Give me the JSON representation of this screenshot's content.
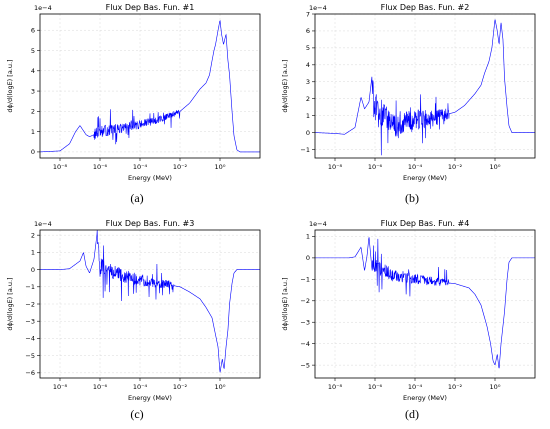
{
  "figure": {
    "panels": [
      {
        "caption": "(a)"
      },
      {
        "caption": "(b)"
      },
      {
        "caption": "(c)"
      },
      {
        "caption": "(d)"
      }
    ]
  },
  "chart_data": [
    {
      "type": "line",
      "title": "Flux Dep Bas. Fun. #1",
      "xlabel": "Energy (MeV)",
      "ylabel": "dϕ/d(logE) [a.u.]",
      "scale_label": "1e−4",
      "xscale": "log",
      "xlim": [
        1e-09,
        100
      ],
      "ylim": [
        -0.3,
        6.8
      ],
      "xticks": [
        1e-08,
        1e-06,
        0.0001,
        0.01,
        1
      ],
      "xtick_labels": [
        "10⁻⁸",
        "10⁻⁶",
        "10⁻⁴",
        "10⁻²",
        "10⁰"
      ],
      "yticks": [
        0,
        1,
        2,
        3,
        4,
        5,
        6
      ],
      "ytick_labels": [
        "0",
        "1",
        "2",
        "3",
        "4",
        "5",
        "6"
      ],
      "grid": true,
      "color": "#0000ff",
      "series": [
        {
          "x": [
            1e-09,
            1e-08,
            3e-08,
            6e-08,
            1e-07,
            2e-07,
            3e-07,
            5e-07,
            1e-06,
            1e-05,
            0.0001,
            0.001,
            0.01,
            0.03,
            0.1,
            0.2,
            0.3,
            0.4,
            0.5,
            0.6,
            0.8,
            1.0,
            1.2,
            1.5,
            2,
            2.5,
            3,
            4,
            5,
            7,
            10
          ],
          "y": [
            0,
            0.05,
            0.4,
            1.0,
            1.3,
            0.85,
            0.75,
            0.85,
            1.0,
            1.15,
            1.35,
            1.6,
            2.0,
            2.4,
            3.1,
            3.4,
            3.8,
            4.5,
            5.0,
            5.3,
            6.0,
            6.5,
            5.8,
            5.3,
            5.8,
            4.5,
            3.8,
            2.0,
            0.8,
            0.1,
            0.0
          ]
        }
      ],
      "noise": {
        "x_range": [
          5e-07,
          0.01
        ],
        "amplitude": 0.3,
        "spikes": 0.7
      }
    },
    {
      "type": "line",
      "title": "Flux Dep Bas. Fun. #2",
      "xlabel": "Energy (MeV)",
      "ylabel": "dϕ/d(logE) [a.u.]",
      "scale_label": "1e−4",
      "xscale": "log",
      "xlim": [
        1e-09,
        100
      ],
      "ylim": [
        -1.5,
        7.0
      ],
      "xticks": [
        1e-08,
        1e-06,
        0.0001,
        0.01,
        1
      ],
      "xtick_labels": [
        "10⁻⁸",
        "10⁻⁶",
        "10⁻⁴",
        "10⁻²",
        "10⁰"
      ],
      "yticks": [
        -1,
        0,
        1,
        2,
        3,
        4,
        5,
        6,
        7
      ],
      "ytick_labels": [
        "−1",
        "0",
        "1",
        "2",
        "3",
        "4",
        "5",
        "6",
        "7"
      ],
      "grid": true,
      "color": "#0000ff",
      "series": [
        {
          "x": [
            1e-09,
            1e-08,
            3e-08,
            1e-07,
            2e-07,
            3e-07,
            5e-07,
            7e-07,
            1e-06,
            1e-05,
            0.0001,
            0.001,
            0.01,
            0.03,
            0.1,
            0.2,
            0.3,
            0.5,
            0.7,
            1.0,
            1.3,
            1.6,
            2,
            2.5,
            3,
            4,
            5,
            7,
            10
          ],
          "y": [
            0,
            -0.05,
            -0.1,
            0.3,
            2.1,
            1.4,
            1.8,
            3.3,
            1.4,
            0.5,
            0.7,
            0.9,
            1.2,
            1.6,
            2.3,
            2.8,
            3.5,
            4.2,
            5.0,
            6.7,
            6.0,
            5.2,
            6.5,
            5.5,
            3.2,
            1.5,
            0.4,
            0.0,
            0.0
          ]
        }
      ],
      "noise": {
        "x_range": [
          7e-07,
          0.005
        ],
        "amplitude": 0.9,
        "spikes": 1.5
      }
    },
    {
      "type": "line",
      "title": "Flux Dep Bas. Fun. #3",
      "xlabel": "Energy (MeV)",
      "ylabel": "dϕ/d(logE) [a.u.]",
      "scale_label": "1e−4",
      "xscale": "log",
      "xlim": [
        1e-09,
        100
      ],
      "ylim": [
        -6.3,
        2.3
      ],
      "xticks": [
        1e-08,
        1e-06,
        0.0001,
        0.01,
        1
      ],
      "xtick_labels": [
        "10⁻⁸",
        "10⁻⁶",
        "10⁻⁴",
        "10⁻²",
        "10⁰"
      ],
      "yticks": [
        -6,
        -5,
        -4,
        -3,
        -2,
        -1,
        0,
        1,
        2
      ],
      "ytick_labels": [
        "−6",
        "−5",
        "−4",
        "−3",
        "−2",
        "−1",
        "0",
        "1",
        "2"
      ],
      "grid": true,
      "color": "#0000ff",
      "series": [
        {
          "x": [
            1e-09,
            1e-08,
            3e-08,
            1e-07,
            1.5e-07,
            2e-07,
            3e-07,
            5e-07,
            7e-07,
            1e-06,
            1e-05,
            0.0001,
            0.001,
            0.01,
            0.03,
            0.1,
            0.2,
            0.4,
            0.6,
            0.8,
            1.0,
            1.3,
            1.6,
            2,
            2.5,
            3,
            4,
            5,
            7,
            10
          ],
          "y": [
            0,
            0,
            0.05,
            0.5,
            1.0,
            0.2,
            -0.2,
            0.6,
            2.0,
            0.2,
            -0.3,
            -0.6,
            -0.8,
            -1.0,
            -1.3,
            -1.7,
            -2.2,
            -2.8,
            -3.8,
            -4.5,
            -6.0,
            -5.2,
            -5.8,
            -4.5,
            -3.5,
            -2.0,
            -0.8,
            -0.2,
            0.0,
            0.0
          ]
        }
      ],
      "noise": {
        "x_range": [
          7e-07,
          0.005
        ],
        "amplitude": 0.5,
        "spikes": 1.2
      }
    },
    {
      "type": "line",
      "title": "Flux Dep Bas. Fun. #4",
      "xlabel": "Energy (MeV)",
      "ylabel": "dϕ/d(logE) [a.u.]",
      "scale_label": "1e−4",
      "xscale": "log",
      "xlim": [
        1e-09,
        100
      ],
      "ylim": [
        -5.6,
        1.3
      ],
      "xticks": [
        1e-08,
        1e-06,
        0.0001,
        0.01,
        1
      ],
      "xtick_labels": [
        "10⁻⁸",
        "10⁻⁶",
        "10⁻⁴",
        "10⁻²",
        "10⁰"
      ],
      "yticks": [
        -5,
        -4,
        -3,
        -2,
        -1,
        0,
        1
      ],
      "ytick_labels": [
        "−5",
        "−4",
        "−3",
        "−2",
        "−1",
        "0",
        "1"
      ],
      "grid": true,
      "color": "#0000ff",
      "series": [
        {
          "x": [
            1e-09,
            1e-08,
            5e-08,
            1e-07,
            2e-07,
            3e-07,
            4e-07,
            5e-07,
            7e-07,
            1e-06,
            1e-05,
            0.0001,
            0.001,
            0.01,
            0.05,
            0.1,
            0.2,
            0.4,
            0.6,
            0.8,
            1.0,
            1.3,
            1.6,
            2,
            3,
            4,
            5,
            7,
            10
          ],
          "y": [
            0,
            0,
            0.0,
            0.05,
            0.5,
            -0.6,
            0.1,
            1.0,
            -0.5,
            -0.4,
            -0.8,
            -1.0,
            -1.1,
            -1.2,
            -1.4,
            -1.7,
            -2.2,
            -3.2,
            -4.0,
            -4.8,
            -5.0,
            -4.5,
            -5.2,
            -4.0,
            -2.5,
            -1.0,
            -0.2,
            0.0,
            0.0
          ]
        }
      ],
      "noise": {
        "x_range": [
          7e-07,
          0.005
        ],
        "amplitude": 0.35,
        "spikes": 0.9
      }
    }
  ]
}
